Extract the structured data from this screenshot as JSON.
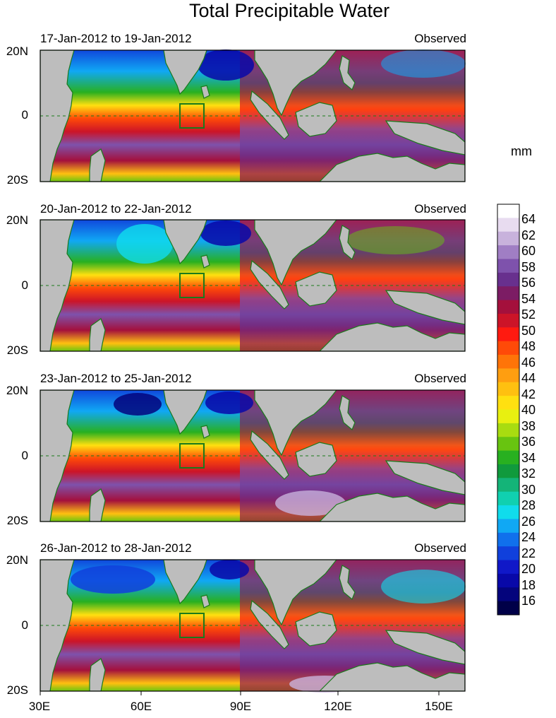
{
  "title": "Total Precipitable Water",
  "units": "mm",
  "panels": [
    {
      "date_range": "17-Jan-2012 to 19-Jan-2012",
      "status": "Observed"
    },
    {
      "date_range": "20-Jan-2012 to 22-Jan-2012",
      "status": "Observed"
    },
    {
      "date_range": "23-Jan-2012 to 25-Jan-2012",
      "status": "Observed"
    },
    {
      "date_range": "26-Jan-2012 to 28-Jan-2012",
      "status": "Observed"
    }
  ],
  "lat_labels": [
    "20N",
    "0",
    "20S"
  ],
  "lon_labels": [
    "30E",
    "60E",
    "90E",
    "120E",
    "150E"
  ],
  "colorbar": {
    "labels": [
      "64",
      "62",
      "60",
      "58",
      "56",
      "54",
      "52",
      "50",
      "48",
      "46",
      "44",
      "42",
      "40",
      "38",
      "36",
      "34",
      "32",
      "30",
      "28",
      "26",
      "24",
      "22",
      "20",
      "18",
      "16"
    ],
    "colors": [
      "#ffffff",
      "#e8dcf0",
      "#c8b2dc",
      "#a07ec4",
      "#7e52ac",
      "#68308e",
      "#7c1c64",
      "#a4103c",
      "#cc1428",
      "#ff1a10",
      "#ff4a08",
      "#ff7408",
      "#ff9e10",
      "#ffc010",
      "#ffe010",
      "#e8f010",
      "#a8dc10",
      "#68c410",
      "#28b020",
      "#109a3c",
      "#14b478",
      "#10d0b0",
      "#10dcec",
      "#10a8f4",
      "#1070ec",
      "#1040dc",
      "#1018c8",
      "#0808a8",
      "#04047c",
      "#000048"
    ]
  }
}
